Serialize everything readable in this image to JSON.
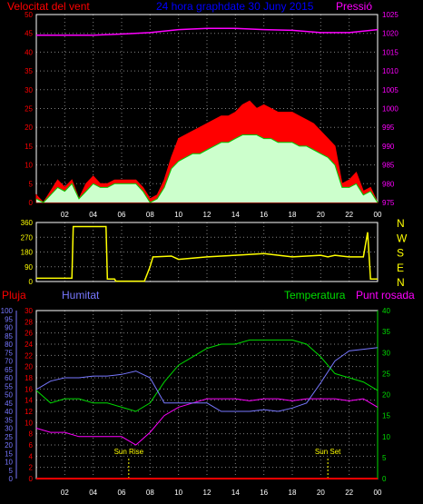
{
  "header": {
    "left_title": "Velocitat del vent",
    "center_title": "24 hora graphdate 30 Juny 2015",
    "right_title": "Pressió"
  },
  "colors": {
    "wind": "#ff0000",
    "pressure": "#ff00ff",
    "title": "#0000ff",
    "gust": "#ff0000",
    "avg": "#00cc00",
    "fill": "#ccffcc",
    "direction": "#ffff00",
    "rain": "#ff0000",
    "humidity": "#7777ff",
    "temperature": "#00dd00",
    "dewpoint": "#ff00ff",
    "grid": "#808080",
    "axis": "#ffffff"
  },
  "bottom_labels": {
    "rain": "Pluja",
    "humidity": "Humitat",
    "temperature": "Temperatura",
    "dewpoint": "Punt rosada",
    "sunrise": "Sun Rise",
    "sunset": "Sun Set"
  },
  "x_ticks": [
    "02",
    "04",
    "06",
    "08",
    "10",
    "12",
    "14",
    "16",
    "18",
    "20",
    "22",
    "00"
  ],
  "chart_data": [
    {
      "type": "line",
      "title": "Velocitat del vent",
      "xlim": [
        0,
        24
      ],
      "y_left": {
        "label": "Velocitat del vent",
        "ylim": [
          0,
          50
        ],
        "ticks": [
          0,
          5,
          10,
          15,
          20,
          25,
          30,
          35,
          40,
          45,
          50
        ]
      },
      "y_right": {
        "label": "Pressió",
        "ylim": [
          975,
          1025
        ],
        "ticks": [
          975,
          980,
          985,
          990,
          995,
          1000,
          1005,
          1010,
          1015,
          1020,
          1025
        ]
      },
      "series": [
        {
          "name": "gust",
          "hours": [
            0,
            0.5,
            1,
            1.5,
            2,
            2.5,
            3,
            3.5,
            4,
            4.5,
            5,
            5.5,
            6,
            6.5,
            7,
            7.5,
            8,
            8.5,
            9,
            9.5,
            10,
            10.5,
            11,
            11.5,
            12,
            12.5,
            13,
            13.5,
            14,
            14.5,
            15,
            15.5,
            16,
            16.5,
            17,
            17.5,
            18,
            18.5,
            19,
            19.5,
            20,
            20.5,
            21,
            21.5,
            22,
            22.5,
            23,
            23.5,
            24
          ],
          "values": [
            2,
            0,
            3,
            6,
            4,
            6,
            1,
            5,
            7,
            5,
            5,
            6,
            6,
            6,
            6,
            4,
            1,
            2,
            6,
            12,
            17,
            18,
            19,
            20,
            21,
            22,
            23,
            23,
            24,
            26,
            27,
            25,
            26,
            25,
            24,
            24,
            24,
            23,
            22,
            21,
            19,
            17,
            15,
            5,
            6,
            8,
            3,
            4,
            0
          ]
        },
        {
          "name": "average",
          "hours": [
            0,
            0.5,
            1,
            1.5,
            2,
            2.5,
            3,
            3.5,
            4,
            4.5,
            5,
            5.5,
            6,
            6.5,
            7,
            7.5,
            8,
            8.5,
            9,
            9.5,
            10,
            10.5,
            11,
            11.5,
            12,
            12.5,
            13,
            13.5,
            14,
            14.5,
            15,
            15.5,
            16,
            16.5,
            17,
            17.5,
            18,
            18.5,
            19,
            19.5,
            20,
            20.5,
            21,
            21.5,
            22,
            22.5,
            23,
            23.5,
            24
          ],
          "values": [
            1,
            0,
            2,
            4,
            3,
            5,
            1,
            3,
            5,
            4,
            4,
            5,
            5,
            5,
            5,
            3,
            0,
            1,
            4,
            9,
            11,
            12,
            13,
            13,
            14,
            15,
            16,
            16,
            17,
            18,
            18,
            18,
            17,
            17,
            16,
            16,
            16,
            15,
            15,
            14,
            13,
            12,
            10,
            4,
            4,
            5,
            2,
            3,
            0
          ]
        },
        {
          "name": "pressure",
          "hours": [
            0,
            2,
            4,
            6,
            8,
            10,
            12,
            14,
            16,
            18,
            20,
            22,
            24
          ],
          "values": [
            1019.5,
            1019.5,
            1019.5,
            1019.8,
            1020.2,
            1021,
            1021.3,
            1021.3,
            1021,
            1020.8,
            1020.2,
            1020.2,
            1021
          ]
        }
      ]
    },
    {
      "type": "line",
      "title": "wind direction",
      "xlim": [
        0,
        24
      ],
      "ylim": [
        0,
        360
      ],
      "ticks": [
        0,
        90,
        180,
        270,
        360
      ],
      "compass": [
        "N",
        "W",
        "S",
        "E",
        "N"
      ],
      "series": [
        {
          "name": "direction",
          "hours": [
            0,
            1.5,
            2.5,
            2.6,
            4.9,
            5,
            5.5,
            5.6,
            7.5,
            7.6,
            8,
            8.2,
            8.3,
            9.5,
            10,
            12,
            14,
            16,
            18,
            20,
            20.5,
            21,
            22,
            22.5,
            23,
            23.3,
            23.5,
            24
          ],
          "values": [
            20,
            20,
            20,
            335,
            335,
            15,
            15,
            2,
            2,
            2,
            90,
            150,
            150,
            155,
            135,
            150,
            160,
            170,
            150,
            160,
            150,
            160,
            150,
            150,
            150,
            300,
            15,
            15
          ]
        }
      ]
    },
    {
      "type": "line",
      "title": "rain humidity temperature dewpoint",
      "xlim": [
        0,
        24
      ],
      "y_axes": [
        {
          "name": "Pluja",
          "ylim": [
            0,
            30
          ],
          "ticks": [
            0,
            2,
            4,
            6,
            8,
            10,
            12,
            14,
            16,
            18,
            20,
            22,
            24,
            26,
            28,
            30
          ]
        },
        {
          "name": "Humitat",
          "ylim": [
            0,
            100
          ],
          "ticks": [
            0,
            5,
            10,
            15,
            20,
            25,
            30,
            35,
            40,
            45,
            50,
            55,
            60,
            65,
            70,
            75,
            80,
            85,
            90,
            95,
            100
          ]
        },
        {
          "name": "Temperatura",
          "ylim": [
            0,
            40
          ],
          "ticks": [
            0,
            5,
            10,
            15,
            20,
            25,
            30,
            35,
            40
          ]
        }
      ],
      "markers": [
        {
          "label": "Sun Rise",
          "hour": 6.5
        },
        {
          "label": "Sun Set",
          "hour": 20.5
        }
      ],
      "series": [
        {
          "name": "rain",
          "hours": [
            0,
            24
          ],
          "values": [
            0,
            0
          ]
        },
        {
          "name": "humidity",
          "hours": [
            0,
            1,
            2,
            3,
            4,
            5,
            6,
            7,
            7.5,
            8,
            9,
            10,
            11,
            12,
            13,
            14,
            15,
            16,
            17,
            18,
            19,
            20,
            21,
            22,
            23,
            24
          ],
          "values": [
            53,
            58,
            60,
            60,
            61,
            61,
            62,
            64,
            62,
            60,
            45,
            45,
            45,
            45,
            40,
            40,
            40,
            41,
            40,
            42,
            45,
            57,
            70,
            76,
            77,
            78
          ]
        },
        {
          "name": "temperature",
          "hours": [
            0,
            1,
            2,
            3,
            4,
            5,
            6,
            7,
            8,
            9,
            10,
            11,
            12,
            13,
            14,
            15,
            16,
            17,
            18,
            19,
            20,
            21,
            22,
            23,
            24
          ],
          "values": [
            21,
            18,
            19,
            19,
            18,
            18,
            17,
            16,
            18,
            23,
            27,
            29,
            31,
            32,
            32,
            33,
            33,
            33,
            33,
            32,
            29,
            25,
            24,
            23,
            21
          ]
        },
        {
          "name": "dewpoint",
          "hours": [
            0,
            1,
            2,
            3,
            4,
            5,
            6,
            7,
            8,
            9,
            10,
            11,
            12,
            13,
            14,
            15,
            16,
            17,
            18,
            19,
            20,
            21,
            22,
            23,
            24
          ],
          "values": [
            12,
            11,
            11,
            10,
            10,
            10,
            10,
            8,
            11,
            15,
            17,
            18,
            19,
            19,
            19,
            18.5,
            19,
            19,
            18.5,
            19,
            19,
            19,
            18.5,
            19,
            17
          ]
        }
      ]
    }
  ]
}
